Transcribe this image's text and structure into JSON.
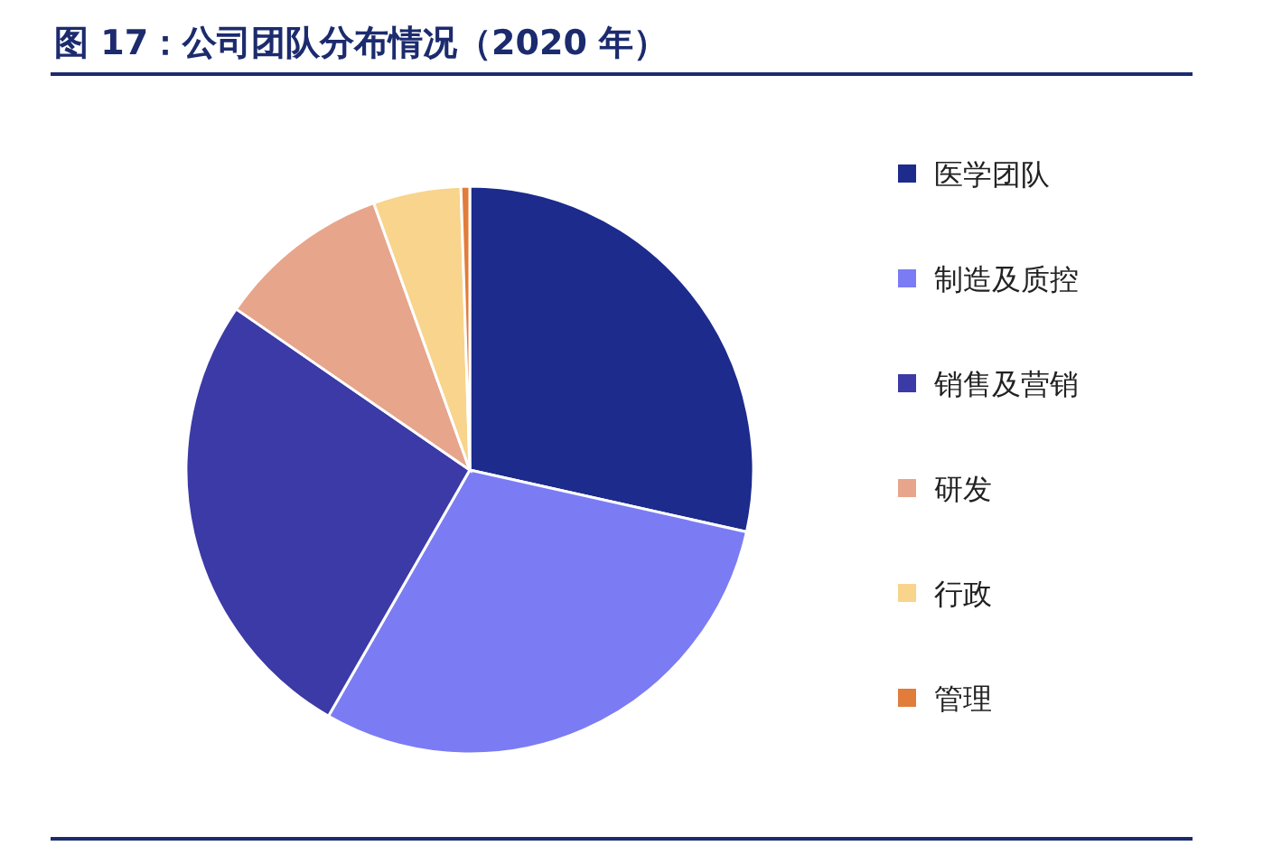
{
  "chart_data": {
    "type": "pie",
    "title": "图 17：公司团队分布情况（2020 年）",
    "categories": [
      "医学团队",
      "制造及质控",
      "销售及营销",
      "研发",
      "行政",
      "管理"
    ],
    "values": [
      28.5,
      29.8,
      26.3,
      9.9,
      5.0,
      0.5
    ],
    "colors": [
      "#1c2b8c",
      "#7b7cf4",
      "#3b3aa6",
      "#e7a58b",
      "#f8d48c",
      "#e27c3a"
    ],
    "legend": "right"
  }
}
